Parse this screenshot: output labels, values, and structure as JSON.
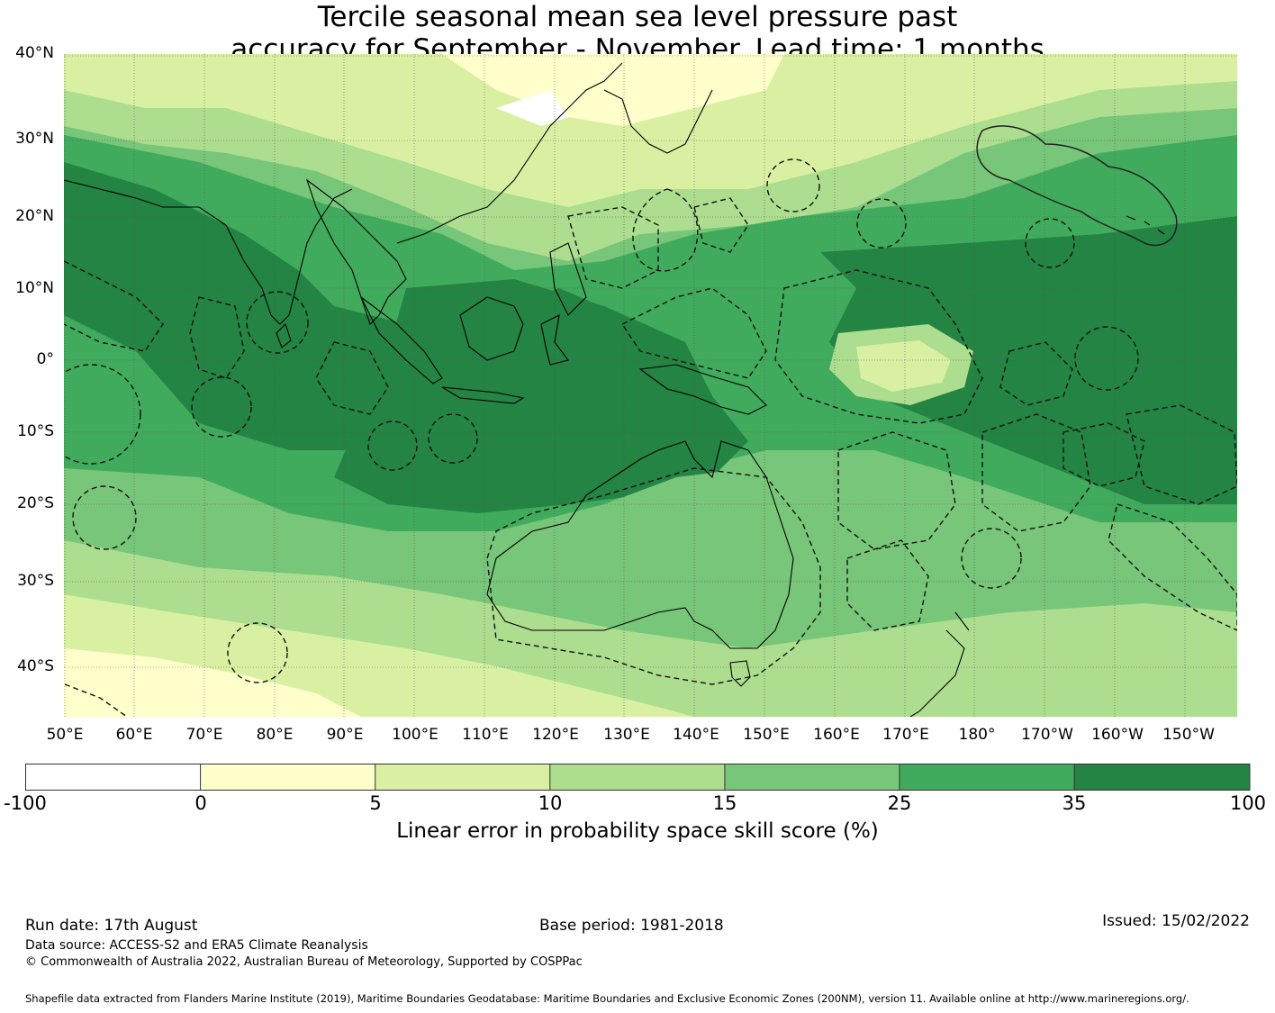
{
  "title": {
    "line1": "Tercile seasonal mean sea level pressure past",
    "line2": "accuracy for September - November. Lead time: 1 months"
  },
  "lat_labels": [
    "40°N",
    "30°N",
    "20°N",
    "10°N",
    "0°",
    "10°S",
    "20°S",
    "30°S",
    "40°S"
  ],
  "lon_labels": [
    "50°E",
    "60°E",
    "70°E",
    "80°E",
    "90°E",
    "100°E",
    "110°E",
    "120°E",
    "130°E",
    "140°E",
    "150°E",
    "160°E",
    "170°E",
    "180°",
    "170°W",
    "160°W",
    "150°W"
  ],
  "colorbar": {
    "ticks": [
      "-100",
      "0",
      "5",
      "10",
      "15",
      "25",
      "35",
      "100"
    ],
    "colors": [
      "#ffffff",
      "#ffffcc",
      "#d9f0a3",
      "#addd8e",
      "#78c679",
      "#41ab5d",
      "#238443"
    ],
    "label": "Linear error in probability space skill score (%)"
  },
  "footer": {
    "run_date": "Run date: 17th August",
    "base_period": "Base period: 1981-2018",
    "issued": "Issued: 15/02/2022",
    "data_source": "Data source: ACCESS-S2 and ERA5 Climate Reanalysis",
    "copyright": "© Commonwealth of Australia 2022, Australian Bureau of Meteorology, Supported by COSPPac",
    "shapefile": "Shapefile data extracted from Flanders Marine Institute (2019), Maritime Boundaries Geodatabase: Maritime Boundaries and Exclusive Economic Zones (200NM), version 11. Available online at http://www.marineregions.org/."
  }
}
